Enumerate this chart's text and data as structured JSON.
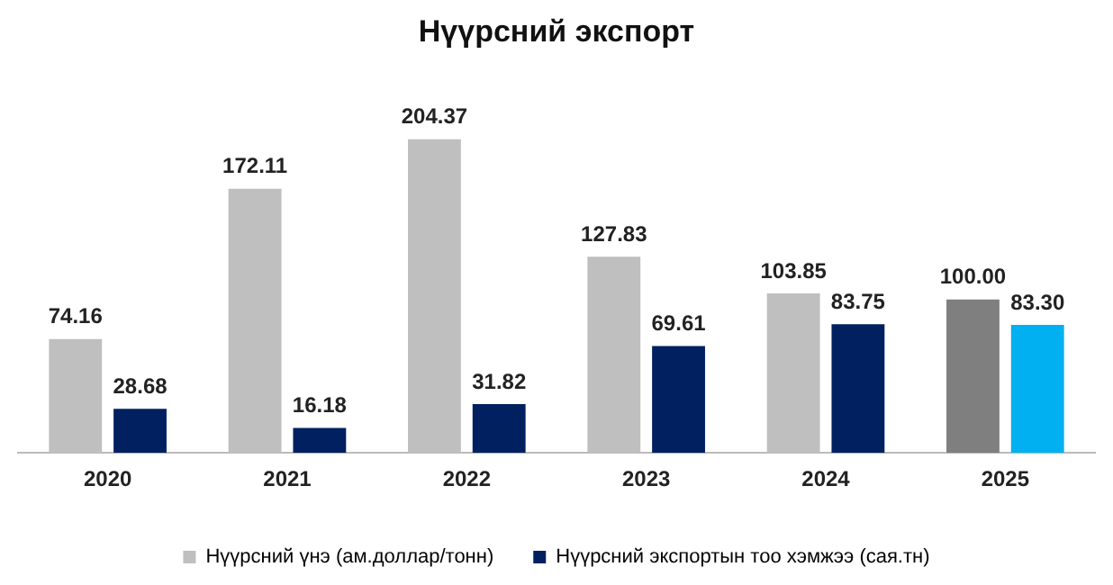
{
  "chart_data": {
    "type": "bar",
    "title": "Нүүрсний экспорт",
    "categories": [
      "2020",
      "2021",
      "2022",
      "2023",
      "2024",
      "2025"
    ],
    "series": [
      {
        "name": "Нүүрсний үнэ (ам.доллар/тонн)",
        "color": "#bfbfbf",
        "colors": [
          "#bfbfbf",
          "#bfbfbf",
          "#bfbfbf",
          "#bfbfbf",
          "#bfbfbf",
          "#7f7f7f"
        ],
        "values": [
          74.16,
          172.11,
          204.37,
          127.83,
          103.85,
          100.0
        ],
        "value_labels": [
          "74.16",
          "172.11",
          "204.37",
          "127.83",
          "103.85",
          "100.00"
        ]
      },
      {
        "name": "Нүүрсний экспортын тоо хэмжээ (сая.тн)",
        "color": "#002060",
        "colors": [
          "#002060",
          "#002060",
          "#002060",
          "#002060",
          "#002060",
          "#00b0f0"
        ],
        "values": [
          28.68,
          16.18,
          31.82,
          69.61,
          83.75,
          83.3
        ],
        "value_labels": [
          "28.68",
          "16.18",
          "31.82",
          "69.61",
          "83.75",
          "83.30"
        ]
      }
    ],
    "legend": "bottom",
    "grid": false
  }
}
